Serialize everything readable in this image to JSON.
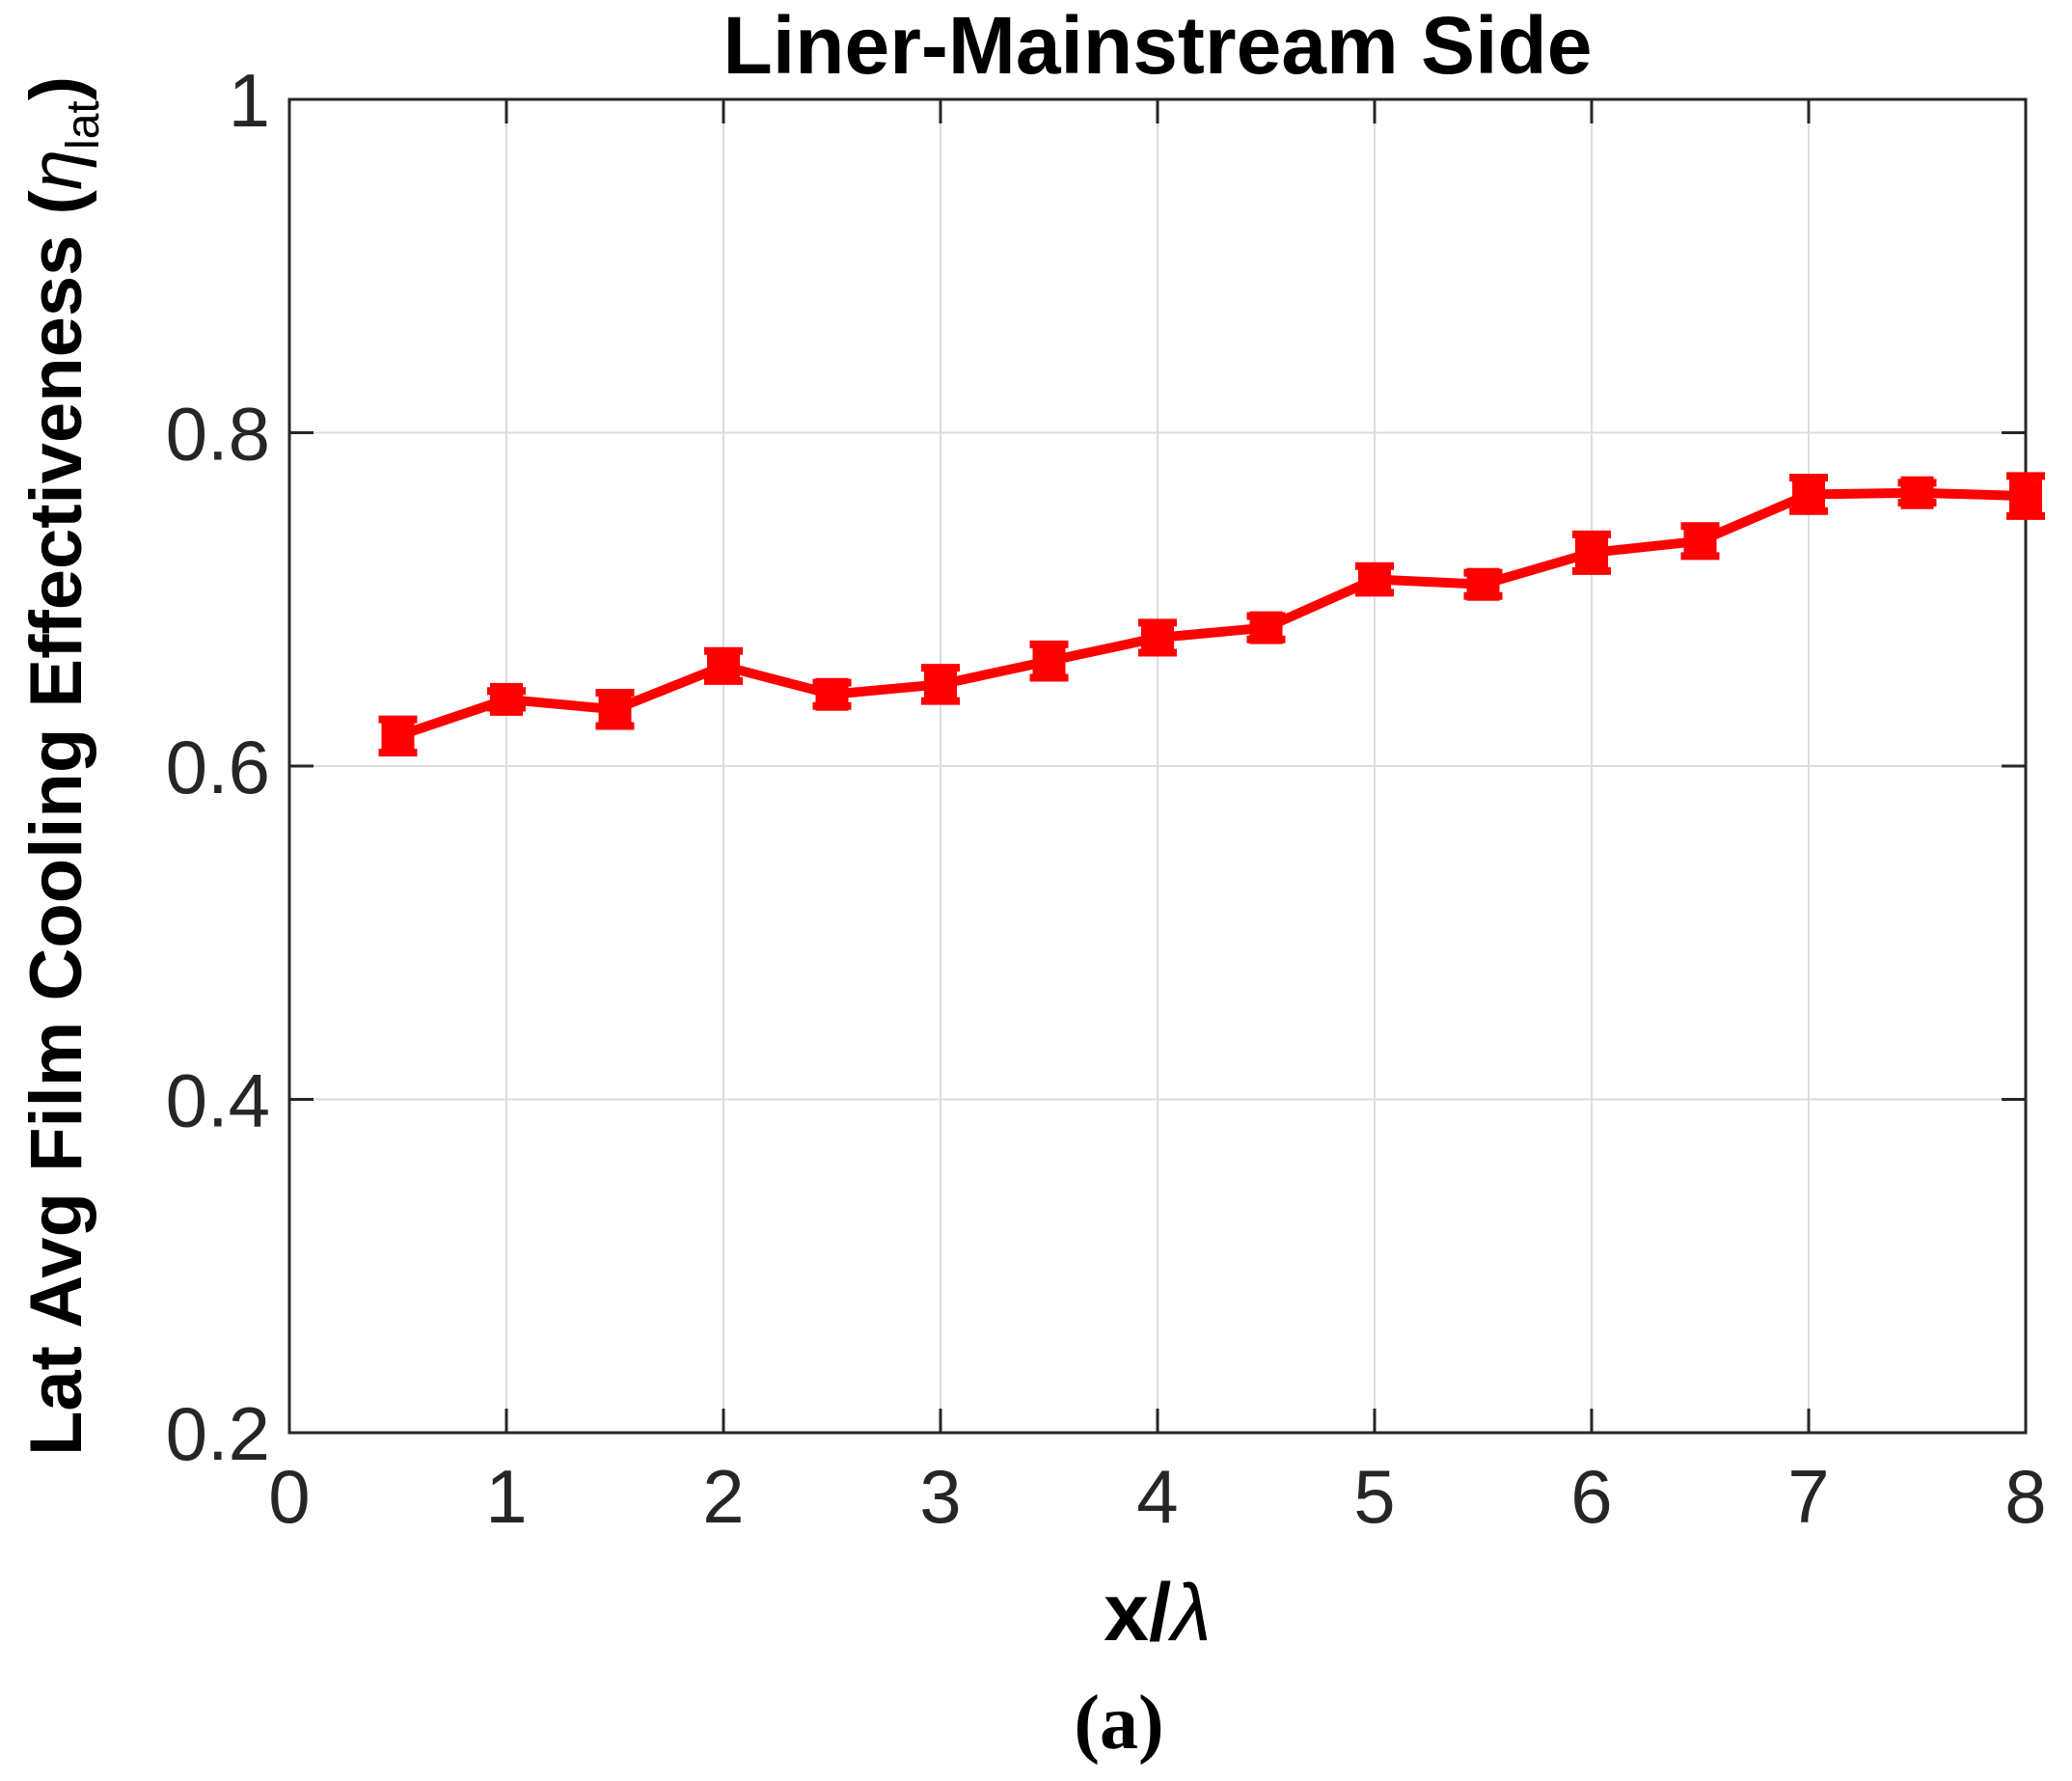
{
  "figure": {
    "title": "Liner-Mainstream Side",
    "caption": "(a)",
    "xlabel_main": "x/",
    "xlabel_symbol": "λ",
    "ylabel_prefix": "Lat Avg Film Cooling Effectiveness (",
    "ylabel_symbol": "η",
    "ylabel_sub": "lat",
    "ylabel_suffix": ")"
  },
  "colors": {
    "series": "#ff0000",
    "axis": "#262626",
    "grid": "#dcdcdc",
    "background": "#ffffff"
  },
  "chart_data": {
    "type": "line",
    "title": "Liner-Mainstream Side",
    "xlabel": "x/λ",
    "ylabel": "Lat Avg Film Cooling Effectiveness (η_lat)",
    "caption": "(a)",
    "xlim": [
      0,
      8
    ],
    "ylim": [
      0.2,
      1.0
    ],
    "x_ticks": [
      0,
      1,
      2,
      3,
      4,
      5,
      6,
      7,
      8
    ],
    "x_tick_labels": [
      "0",
      "1",
      "2",
      "3",
      "4",
      "5",
      "6",
      "7",
      "8"
    ],
    "y_ticks": [
      0.2,
      0.4,
      0.6,
      0.8,
      1.0
    ],
    "y_tick_labels": [
      "0.2",
      "0.4",
      "0.6",
      "0.8",
      "1"
    ],
    "grid": true,
    "legend": "none",
    "series": [
      {
        "name": "liner-mainstream-side",
        "color": "#ff0000",
        "marker": "square",
        "x": [
          0.5,
          1.0,
          1.5,
          2.0,
          2.5,
          3.0,
          3.5,
          4.0,
          4.5,
          5.0,
          5.5,
          6.0,
          6.5,
          7.0,
          7.5,
          8.0
        ],
        "y": [
          0.618,
          0.64,
          0.634,
          0.66,
          0.643,
          0.649,
          0.663,
          0.677,
          0.683,
          0.712,
          0.709,
          0.728,
          0.735,
          0.763,
          0.764,
          0.762
        ],
        "yerr": [
          0.01,
          0.005,
          0.01,
          0.009,
          0.007,
          0.01,
          0.01,
          0.009,
          0.007,
          0.008,
          0.007,
          0.011,
          0.009,
          0.01,
          0.006,
          0.012
        ]
      }
    ]
  }
}
